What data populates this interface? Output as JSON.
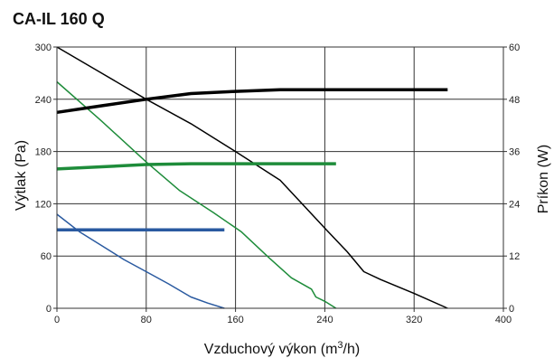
{
  "chart_data": {
    "type": "line",
    "title": "CA-IL 160 Q",
    "xlabel_main": "Vzduchový výkon (m",
    "xlabel_sup": "3",
    "xlabel_end": "/h)",
    "ylabel_left": "Výtlak (Pa)",
    "ylabel_right": "Príkon (W)",
    "xlim": [
      0,
      400
    ],
    "ylim_left": [
      0,
      300
    ],
    "ylim_right": [
      0,
      60
    ],
    "xticks": [
      "0",
      "80",
      "160",
      "240",
      "320",
      "400"
    ],
    "yticks_left": [
      "0",
      "60",
      "120",
      "180",
      "240",
      "300"
    ],
    "yticks_right": [
      "0",
      "12",
      "24",
      "36",
      "48",
      "60"
    ],
    "grid": true,
    "series": [
      {
        "color": "#000000",
        "axis": "left",
        "kind": "pressure",
        "x": [
          0,
          40,
          80,
          120,
          160,
          200,
          240,
          260,
          275,
          290,
          320,
          350
        ],
        "y": [
          300,
          270,
          240,
          212,
          180,
          147,
          92,
          65,
          42,
          33,
          17,
          0
        ]
      },
      {
        "color": "#1e8c3a",
        "axis": "left",
        "kind": "pressure",
        "x": [
          0,
          40,
          80,
          110,
          140,
          165,
          190,
          210,
          228,
          232,
          240,
          250
        ],
        "y": [
          260,
          215,
          168,
          135,
          110,
          88,
          58,
          35,
          22,
          13,
          8,
          0
        ]
      },
      {
        "color": "#2a5aa0",
        "axis": "left",
        "kind": "pressure",
        "x": [
          0,
          20,
          40,
          60,
          80,
          100,
          120,
          135,
          150
        ],
        "y": [
          108,
          88,
          72,
          56,
          42,
          28,
          13,
          6,
          0
        ]
      },
      {
        "color": "#000000",
        "axis": "right",
        "kind": "power",
        "x": [
          0,
          40,
          80,
          120,
          160,
          200,
          240,
          280,
          320,
          350
        ],
        "y": [
          45,
          46.5,
          48,
          49.3,
          49.8,
          50.2,
          50.2,
          50.2,
          50.2,
          50.2
        ]
      },
      {
        "color": "#1e8c3a",
        "axis": "right",
        "kind": "power",
        "x": [
          0,
          40,
          80,
          120,
          160,
          200,
          250
        ],
        "y": [
          32,
          32.5,
          33,
          33.2,
          33.2,
          33.2,
          33.2
        ]
      },
      {
        "color": "#2a5aa0",
        "axis": "right",
        "kind": "power",
        "x": [
          0,
          150
        ],
        "y": [
          18,
          18
        ]
      }
    ]
  }
}
